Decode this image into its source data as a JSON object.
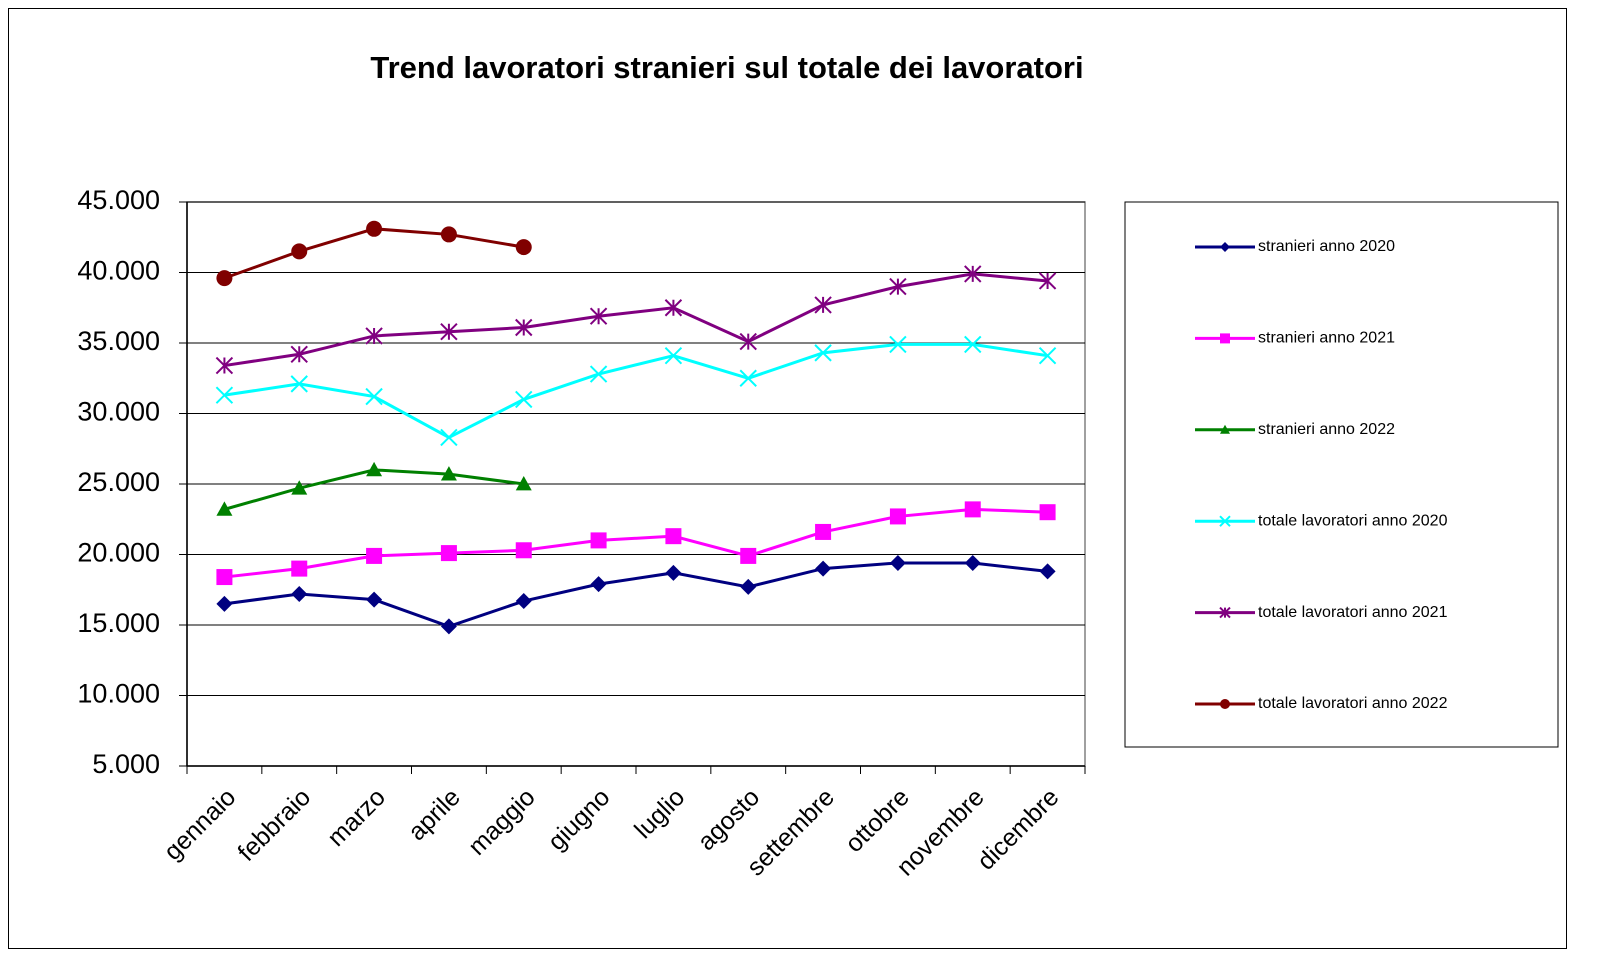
{
  "chart_data": {
    "type": "line",
    "title": "Trend lavoratori stranieri sul totale dei lavoratori",
    "categories": [
      "gennaio",
      "febbraio",
      "marzo",
      "aprile",
      "maggio",
      "giugno",
      "luglio",
      "agosto",
      "settembre",
      "ottobre",
      "novembre",
      "dicembre"
    ],
    "series": [
      {
        "name": "stranieri anno 2020",
        "color": "#000080",
        "marker": "diamond",
        "values": [
          16500,
          17200,
          16800,
          14900,
          16700,
          17900,
          18700,
          17700,
          19000,
          19400,
          19400,
          18800
        ]
      },
      {
        "name": "stranieri anno 2021",
        "color": "#ff00ff",
        "marker": "square",
        "values": [
          18400,
          19000,
          19900,
          20100,
          20300,
          21000,
          21300,
          19900,
          21600,
          22700,
          23200,
          23000
        ]
      },
      {
        "name": "stranieri anno 2022",
        "color": "#008000",
        "marker": "triangle",
        "values": [
          23200,
          24700,
          26000,
          25700,
          25000,
          null,
          null,
          null,
          null,
          null,
          null,
          null
        ]
      },
      {
        "name": "totale lavoratori anno 2020",
        "color": "#00ffff",
        "marker": "x",
        "values": [
          31300,
          32100,
          31200,
          28300,
          31000,
          32800,
          34100,
          32500,
          34300,
          34900,
          34900,
          34100
        ]
      },
      {
        "name": "totale lavoratori anno 2021",
        "color": "#800080",
        "marker": "star",
        "values": [
          33400,
          34200,
          35500,
          35800,
          36100,
          36900,
          37500,
          35100,
          37700,
          39000,
          39900,
          39400
        ]
      },
      {
        "name": "totale lavoratori anno 2022",
        "color": "#800000",
        "marker": "circle",
        "values": [
          39600,
          41500,
          43100,
          42700,
          41800,
          null,
          null,
          null,
          null,
          null,
          null,
          null
        ]
      }
    ],
    "ylim": [
      5000,
      45000
    ],
    "yticks": [
      {
        "value": 5000,
        "label": "5.000"
      },
      {
        "value": 10000,
        "label": "10.000"
      },
      {
        "value": 15000,
        "label": "15.000"
      },
      {
        "value": 20000,
        "label": "20.000"
      },
      {
        "value": 25000,
        "label": "25.000"
      },
      {
        "value": 30000,
        "label": "30.000"
      },
      {
        "value": 35000,
        "label": "35.000"
      },
      {
        "value": 40000,
        "label": "40.000"
      },
      {
        "value": 45000,
        "label": "45.000"
      }
    ],
    "grid": true,
    "legend": "right"
  }
}
